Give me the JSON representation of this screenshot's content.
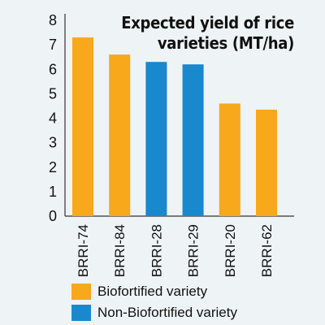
{
  "chart_data": {
    "type": "bar",
    "title": "Expected yield of rice varieties (MT/ha)",
    "title_lines": [
      "Expected yield of rice",
      "varieties (MT/ha)"
    ],
    "categories": [
      "BRRI-74",
      "BRRI-84",
      "BRRI-28",
      "BRRI-29",
      "BRRI-20",
      "BRRI-62"
    ],
    "values": [
      7.3,
      6.6,
      6.3,
      6.2,
      4.6,
      4.35
    ],
    "groups": [
      "Biofortified variety",
      "Biofortified variety",
      "Non-Biofortified variety",
      "Non-Biofortified variety",
      "Biofortified variety",
      "Biofortified variety"
    ],
    "ylim": [
      0,
      8
    ],
    "yticks": [
      0,
      1,
      2,
      3,
      4,
      5,
      6,
      7,
      8
    ],
    "xlabel": "",
    "ylabel": "",
    "grid": false,
    "legend_position": "bottom-left",
    "colors": {
      "Biofortified variety": "#f7a81b",
      "Non-Biofortified variety": "#1a88cc"
    }
  },
  "legend": [
    {
      "label": "Biofortified variety",
      "color": "#f7a81b"
    },
    {
      "label": "Non-Biofortified variety",
      "color": "#1a88cc"
    }
  ]
}
